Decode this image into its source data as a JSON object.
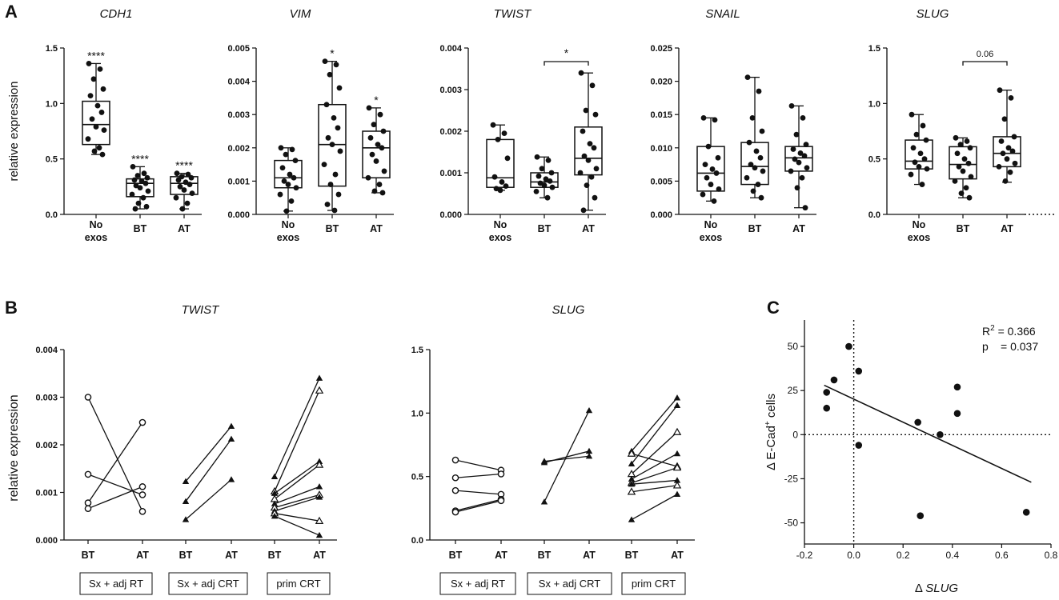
{
  "panel_labels": {
    "a": "A",
    "b": "B",
    "c": "C"
  },
  "colors": {
    "ink": "#111111",
    "background": "#ffffff"
  },
  "chart_data": [
    {
      "id": "A-CDH1",
      "type": "box",
      "title": "CDH1",
      "ylabel": "relative expression",
      "ylim": [
        0,
        1.5
      ],
      "yticks": [
        "0.0",
        "0.5",
        "1.0",
        "1.5"
      ],
      "categories": [
        "No exos",
        "BT",
        "AT"
      ],
      "boxes": [
        {
          "min": 0.54,
          "q1": 0.63,
          "median": 0.81,
          "q3": 1.02,
          "max": 1.36,
          "points": [
            1.36,
            1.31,
            1.22,
            1.13,
            1.07,
            0.98,
            0.92,
            0.86,
            0.79,
            0.76,
            0.68,
            0.6,
            0.57,
            0.54
          ],
          "sig": "****"
        },
        {
          "min": 0.05,
          "q1": 0.16,
          "median": 0.28,
          "q3": 0.32,
          "max": 0.43,
          "points": [
            0.43,
            0.37,
            0.35,
            0.33,
            0.31,
            0.3,
            0.28,
            0.26,
            0.24,
            0.21,
            0.18,
            0.15,
            0.1,
            0.07,
            0.05
          ],
          "sig": "****"
        },
        {
          "min": 0.05,
          "q1": 0.18,
          "median": 0.28,
          "q3": 0.34,
          "max": 0.37,
          "points": [
            0.37,
            0.36,
            0.34,
            0.33,
            0.31,
            0.29,
            0.27,
            0.25,
            0.22,
            0.19,
            0.15,
            0.1,
            0.05
          ],
          "sig": "****"
        }
      ]
    },
    {
      "id": "A-VIM",
      "type": "box",
      "title": "VIM",
      "ylabel": "",
      "ylim": [
        0,
        0.005
      ],
      "yticks": [
        "0.000",
        "0.001",
        "0.002",
        "0.003",
        "0.004",
        "0.005"
      ],
      "categories": [
        "No exos",
        "BT",
        "AT"
      ],
      "boxes": [
        {
          "min": 0.0001,
          "q1": 0.0008,
          "median": 0.0011,
          "q3": 0.00162,
          "max": 0.002,
          "points": [
            0.002,
            0.00195,
            0.0018,
            0.00162,
            0.0014,
            0.0012,
            0.0011,
            0.001,
            0.0009,
            0.0008,
            0.0006,
            0.0004,
            0.0001
          ],
          "sig": ""
        },
        {
          "min": 0.00012,
          "q1": 0.00085,
          "median": 0.0021,
          "q3": 0.0033,
          "max": 0.0046,
          "points": [
            0.0046,
            0.0045,
            0.0042,
            0.0038,
            0.0033,
            0.0029,
            0.0026,
            0.0023,
            0.0021,
            0.0019,
            0.0015,
            0.0012,
            0.0009,
            0.0006,
            0.0003,
            0.00012
          ],
          "sig": "*"
        },
        {
          "min": 0.00065,
          "q1": 0.0011,
          "median": 0.002,
          "q3": 0.0025,
          "max": 0.0032,
          "points": [
            0.0032,
            0.003,
            0.0027,
            0.0025,
            0.0023,
            0.0021,
            0.002,
            0.0018,
            0.0016,
            0.0013,
            0.0011,
            0.0009,
            0.0007,
            0.00065
          ],
          "sig": "*"
        }
      ]
    },
    {
      "id": "A-TWIST",
      "type": "box",
      "title": "TWIST",
      "ylabel": "",
      "ylim": [
        0,
        0.004
      ],
      "yticks": [
        "0.000",
        "0.001",
        "0.002",
        "0.003",
        "0.004"
      ],
      "categories": [
        "No exos",
        "BT",
        "AT"
      ],
      "boxes": [
        {
          "min": 0.00058,
          "q1": 0.00065,
          "median": 0.00088,
          "q3": 0.0018,
          "max": 0.00215,
          "points": [
            0.00215,
            0.00195,
            0.0018,
            0.00135,
            0.0009,
            0.00078,
            0.00068,
            0.00062,
            0.00058
          ],
          "sig": ""
        },
        {
          "min": 0.0004,
          "q1": 0.00065,
          "median": 0.00078,
          "q3": 0.001,
          "max": 0.00138,
          "points": [
            0.00138,
            0.0013,
            0.0011,
            0.001,
            0.00092,
            0.00085,
            0.0008,
            0.00075,
            0.0007,
            0.00065,
            0.00055,
            0.0004
          ],
          "sig": ""
        },
        {
          "min": 0.0001,
          "q1": 0.00095,
          "median": 0.00135,
          "q3": 0.0021,
          "max": 0.0034,
          "points": [
            0.0034,
            0.0031,
            0.0025,
            0.0024,
            0.002,
            0.0017,
            0.0016,
            0.0014,
            0.0013,
            0.0011,
            0.001,
            0.0009,
            0.0007,
            0.0004,
            0.0001
          ],
          "sig": ""
        }
      ],
      "brackets": [
        {
          "from": 1,
          "to": 2,
          "label": "*"
        }
      ]
    },
    {
      "id": "A-SNAIL",
      "type": "box",
      "title": "SNAIL",
      "ylabel": "",
      "ylim": [
        0,
        0.025
      ],
      "yticks": [
        "0.000",
        "0.005",
        "0.010",
        "0.015",
        "0.020",
        "0.025"
      ],
      "categories": [
        "No exos",
        "BT",
        "AT"
      ],
      "boxes": [
        {
          "min": 0.002,
          "q1": 0.0035,
          "median": 0.0062,
          "q3": 0.0102,
          "max": 0.0145,
          "points": [
            0.0145,
            0.0142,
            0.0102,
            0.0085,
            0.0075,
            0.0068,
            0.0062,
            0.0055,
            0.0045,
            0.0038,
            0.003,
            0.002
          ],
          "sig": ""
        },
        {
          "min": 0.0025,
          "q1": 0.0045,
          "median": 0.0072,
          "q3": 0.0108,
          "max": 0.0206,
          "points": [
            0.0206,
            0.0185,
            0.0145,
            0.0125,
            0.0108,
            0.0095,
            0.0085,
            0.0075,
            0.007,
            0.0065,
            0.0055,
            0.0045,
            0.0035,
            0.0025
          ],
          "sig": ""
        },
        {
          "min": 0.001,
          "q1": 0.0065,
          "median": 0.0085,
          "q3": 0.0102,
          "max": 0.0163,
          "points": [
            0.0163,
            0.0145,
            0.012,
            0.0105,
            0.0098,
            0.0092,
            0.0088,
            0.0083,
            0.0078,
            0.007,
            0.0065,
            0.0055,
            0.004,
            0.001
          ],
          "sig": ""
        }
      ]
    },
    {
      "id": "A-SLUG",
      "type": "box",
      "title": "SLUG",
      "ylabel": "",
      "ylim": [
        0,
        1.5
      ],
      "yticks": [
        "0.0",
        "0.5",
        "1.0",
        "1.5"
      ],
      "categories": [
        "No exos",
        "BT",
        "AT"
      ],
      "boxes": [
        {
          "min": 0.27,
          "q1": 0.41,
          "median": 0.48,
          "q3": 0.67,
          "max": 0.9,
          "points": [
            0.9,
            0.8,
            0.72,
            0.67,
            0.6,
            0.55,
            0.5,
            0.47,
            0.43,
            0.41,
            0.36,
            0.27
          ],
          "sig": ""
        },
        {
          "min": 0.15,
          "q1": 0.32,
          "median": 0.45,
          "q3": 0.61,
          "max": 0.69,
          "points": [
            0.69,
            0.66,
            0.63,
            0.6,
            0.55,
            0.5,
            0.46,
            0.43,
            0.39,
            0.34,
            0.3,
            0.24,
            0.19,
            0.15
          ],
          "sig": ""
        },
        {
          "min": 0.29,
          "q1": 0.43,
          "median": 0.55,
          "q3": 0.7,
          "max": 1.12,
          "points": [
            1.12,
            1.05,
            0.86,
            0.7,
            0.66,
            0.6,
            0.57,
            0.55,
            0.5,
            0.46,
            0.43,
            0.38,
            0.3
          ],
          "sig": ""
        }
      ],
      "brackets": [
        {
          "from": 1,
          "to": 2,
          "label": "0.06"
        }
      ]
    },
    {
      "id": "B-TWIST",
      "type": "paired-line",
      "title": "TWIST",
      "ylabel": "relative expression",
      "ylim": [
        0,
        0.004
      ],
      "yticks": [
        "0.000",
        "0.001",
        "0.002",
        "0.003",
        "0.004"
      ],
      "x_labels": [
        "BT",
        "AT",
        "BT",
        "AT",
        "BT",
        "AT"
      ],
      "groups": [
        {
          "label": "Sx + adj RT",
          "marker": "circle",
          "pairs": [
            [
              0.003,
              0.0006
            ],
            [
              0.00138,
              0.00095
            ],
            [
              0.00078,
              0.00247
            ],
            [
              0.00066,
              0.00112
            ]
          ]
        },
        {
          "label": "Sx + adj CRT",
          "marker": "triangle",
          "pairs": [
            [
              0.00123,
              0.00239
            ],
            [
              0.00081,
              0.00212
            ],
            [
              0.00043,
              0.00127
            ]
          ]
        },
        {
          "label": "prim CRT",
          "marker": "triangle-mixed",
          "pairs": [
            [
              0.00133,
              0.0034
            ],
            [
              0.00102,
              0.00314
            ],
            [
              0.00098,
              0.00165
            ],
            [
              0.00086,
              0.00158
            ],
            [
              0.00076,
              0.00112
            ],
            [
              0.00068,
              0.00095
            ],
            [
              0.00061,
              0.0009
            ],
            [
              0.00056,
              0.0004
            ],
            [
              0.0005,
              0.0001
            ]
          ]
        }
      ]
    },
    {
      "id": "B-SLUG",
      "type": "paired-line",
      "title": "SLUG",
      "ylabel": "",
      "ylim": [
        0,
        1.5
      ],
      "yticks": [
        "0.0",
        "0.5",
        "1.0",
        "1.5"
      ],
      "x_labels": [
        "BT",
        "AT",
        "BT",
        "AT",
        "BT",
        "AT"
      ],
      "groups": [
        {
          "label": "Sx + adj RT",
          "marker": "circle",
          "pairs": [
            [
              0.63,
              0.55
            ],
            [
              0.49,
              0.52
            ],
            [
              0.39,
              0.36
            ],
            [
              0.23,
              0.32
            ],
            [
              0.22,
              0.31
            ]
          ]
        },
        {
          "label": "Sx + adj CRT",
          "marker": "triangle",
          "pairs": [
            [
              0.62,
              0.66
            ],
            [
              0.61,
              0.7
            ],
            [
              0.3,
              1.02
            ]
          ]
        },
        {
          "label": "prim CRT",
          "marker": "triangle-mixed",
          "pairs": [
            [
              0.7,
              1.12
            ],
            [
              0.68,
              0.58
            ],
            [
              0.6,
              1.06
            ],
            [
              0.52,
              0.85
            ],
            [
              0.48,
              0.68
            ],
            [
              0.45,
              0.57
            ],
            [
              0.44,
              0.47
            ],
            [
              0.38,
              0.43
            ],
            [
              0.16,
              0.36
            ]
          ]
        }
      ]
    },
    {
      "id": "C",
      "type": "scatter",
      "xlabel_prefix": "Δ",
      "xlabel_gene": "SLUG",
      "ylabel_main": "Δ E-Cad",
      "ylabel_sup": "+",
      "ylabel_suffix": " cells",
      "xlim": [
        -0.2,
        0.8
      ],
      "ylim": [
        -62,
        65
      ],
      "xticks": [
        "-0.2",
        "0.0",
        "0.2",
        "0.4",
        "0.6",
        "0.8"
      ],
      "yticks": [
        "50",
        "25",
        "0",
        "-25",
        "-50"
      ],
      "points": [
        [
          -0.02,
          50
        ],
        [
          -0.08,
          31
        ],
        [
          -0.11,
          24
        ],
        [
          -0.11,
          15
        ],
        [
          0.02,
          36
        ],
        [
          0.02,
          -6
        ],
        [
          0.26,
          7
        ],
        [
          0.35,
          0
        ],
        [
          0.42,
          27
        ],
        [
          0.42,
          12
        ],
        [
          0.27,
          -46
        ],
        [
          0.7,
          -44
        ]
      ],
      "regression": {
        "x0": -0.12,
        "y0": 28,
        "x1": 0.72,
        "y1": -27
      },
      "r2_prefix": "R",
      "r2_sup": "2",
      "r2_value": " = 0.366",
      "p_label": "p",
      "p_value": "= 0.037"
    }
  ]
}
